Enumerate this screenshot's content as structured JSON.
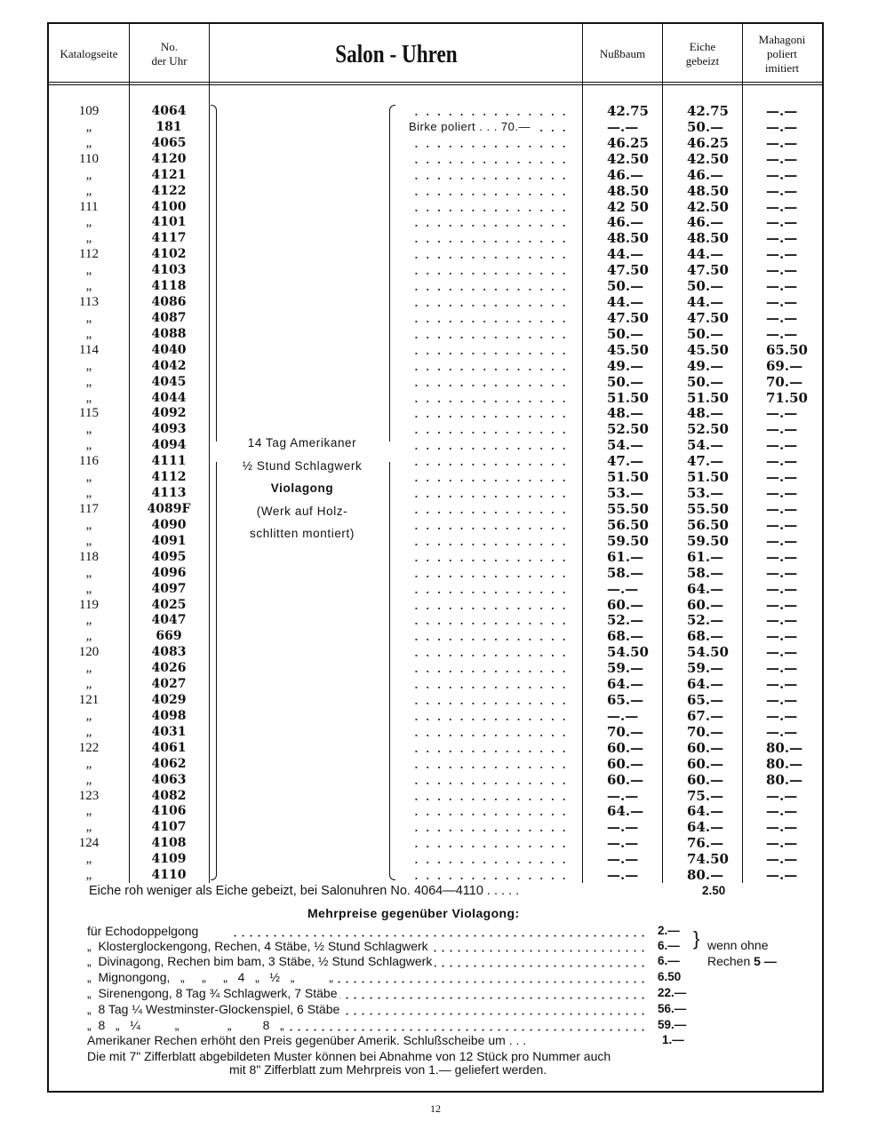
{
  "header": {
    "col_page": "Katalogseite",
    "col_no_1": "No.",
    "col_no_2": "der Uhr",
    "title": "Salon - Uhren",
    "col_nussbaum": "Nußbaum",
    "col_eiche_1": "Eiche",
    "col_eiche_2": "gebeizt",
    "col_mahagoni_1": "Mahagoni",
    "col_mahagoni_2": "poliert",
    "col_mahagoni_3": "imitiert"
  },
  "description": {
    "line1": "14 Tag Amerikaner",
    "line2": "½ Stund Schlagwerk",
    "line3": "Violagong",
    "line4": "(Werk auf Holz-",
    "line5": "schlitten montiert)"
  },
  "birke_note": "Birke poliert . . . 70.—",
  "rows": [
    [
      "109",
      "4064",
      "42.75",
      "42.75",
      "—.—"
    ],
    [
      "„",
      "181",
      "—.—",
      "50.—",
      "—.—"
    ],
    [
      "„",
      "4065",
      "46.25",
      "46.25",
      "—.—"
    ],
    [
      "110",
      "4120",
      "42.50",
      "42.50",
      "—.—"
    ],
    [
      "„",
      "4121",
      "46.—",
      "46.—",
      "—.—"
    ],
    [
      "„",
      "4122",
      "48.50",
      "48.50",
      "—.—"
    ],
    [
      "111",
      "4100",
      "42 50",
      "42.50",
      "—.—"
    ],
    [
      "„",
      "4101",
      "46.—",
      "46.—",
      "—.—"
    ],
    [
      "„",
      "4117",
      "48.50",
      "48.50",
      "—.—"
    ],
    [
      "112",
      "4102",
      "44.—",
      "44.—",
      "—.—"
    ],
    [
      "„",
      "4103",
      "47.50",
      "47.50",
      "—.—"
    ],
    [
      "„",
      "4118",
      "50.—",
      "50.—",
      "—.—"
    ],
    [
      "113",
      "4086",
      "44.—",
      "44.—",
      "—.—"
    ],
    [
      "„",
      "4087",
      "47.50",
      "47.50",
      "—.—"
    ],
    [
      "„",
      "4088",
      "50.—",
      "50.—",
      "—.—"
    ],
    [
      "114",
      "4040",
      "45.50",
      "45.50",
      "65.50"
    ],
    [
      "„",
      "4042",
      "49.—",
      "49.—",
      "69.—"
    ],
    [
      "„",
      "4045",
      "50.—",
      "50.—",
      "70.—"
    ],
    [
      "„",
      "4044",
      "51.50",
      "51.50",
      "71.50"
    ],
    [
      "115",
      "4092",
      "48.—",
      "48.—",
      "—.—"
    ],
    [
      "„",
      "4093",
      "52.50",
      "52.50",
      "—.—"
    ],
    [
      "„",
      "4094",
      "54.—",
      "54.—",
      "—.—"
    ],
    [
      "116",
      "4111",
      "47.—",
      "47.—",
      "—.—"
    ],
    [
      "„",
      "4112",
      "51.50",
      "51.50",
      "—.—"
    ],
    [
      "„",
      "4113",
      "53.—",
      "53.—",
      "—.—"
    ],
    [
      "117",
      "4089F",
      "55.50",
      "55.50",
      "—.—"
    ],
    [
      "„",
      "4090",
      "56.50",
      "56.50",
      "—.—"
    ],
    [
      "„",
      "4091",
      "59.50",
      "59.50",
      "—.—"
    ],
    [
      "118",
      "4095",
      "61.—",
      "61.—",
      "—.—"
    ],
    [
      "„",
      "4096",
      "58.—",
      "58.—",
      "—.—"
    ],
    [
      "„",
      "4097",
      "—.—",
      "64.—",
      "—.—"
    ],
    [
      "119",
      "4025",
      "60.—",
      "60.—",
      "—.—"
    ],
    [
      "„",
      "4047",
      "52.—",
      "52.—",
      "—.—"
    ],
    [
      "„",
      "669",
      "68.—",
      "68.—",
      "—.—"
    ],
    [
      "120",
      "4083",
      "54.50",
      "54.50",
      "—.—"
    ],
    [
      "„",
      "4026",
      "59.—",
      "59.—",
      "—.—"
    ],
    [
      "„",
      "4027",
      "64.—",
      "64.—",
      "—.—"
    ],
    [
      "121",
      "4029",
      "65.—",
      "65.—",
      "—.—"
    ],
    [
      "„",
      "4098",
      "—.—",
      "67.—",
      "—.—"
    ],
    [
      "„",
      "4031",
      "70.—",
      "70.—",
      "—.—"
    ],
    [
      "122",
      "4061",
      "60.—",
      "60.—",
      "80.—"
    ],
    [
      "„",
      "4062",
      "60.—",
      "60.—",
      "80.—"
    ],
    [
      "„",
      "4063",
      "60.—",
      "60.—",
      "80.—"
    ],
    [
      "123",
      "4082",
      "—.—",
      "75.—",
      "—.—"
    ],
    [
      "„",
      "4106",
      "64.—",
      "64.—",
      "—.—"
    ],
    [
      "„",
      "4107",
      "—.—",
      "64.—",
      "—.—"
    ],
    [
      "124",
      "4108",
      "—.—",
      "76.—",
      "—.—"
    ],
    [
      "„",
      "4109",
      "—.—",
      "74.50",
      "—.—"
    ],
    [
      "„",
      "4110",
      "—.—",
      "80.—",
      "—.—"
    ]
  ],
  "notes": {
    "eiche_roh": "Eiche roh weniger als Eiche gebeizt, bei Salonuhren No. 4064—4110 . . . . .",
    "eiche_roh_value": "2.50",
    "mehrpreise_heading": "Mehrpreise gegenüber Violagong:",
    "surcharges": [
      {
        "label": "für Echodoppelgong",
        "value": "2.—"
      },
      {
        "label": "„  Klosterglockengong, Rechen, 4 Stäbe, ½ Stund Schlagwerk",
        "value": "6.—"
      },
      {
        "label": "„  Divinagong, Rechen bim bam, 3 Stäbe, ½ Stund Schlagwerk",
        "value": "6.—"
      },
      {
        "label": "„  Mignongong,   „     „     „   4   „   ½   „          „",
        "value": "6.50"
      },
      {
        "label": "„  Sirenengong, 8 Tag ¾ Schlagwerk, 7 Stäbe",
        "value": "22.—"
      },
      {
        "label": "„  8 Tag ¼ Westminster-Glockenspiel, 6 Stäbe",
        "value": "56.—"
      },
      {
        "label": "„  8   „   ¼          „              „         8   „",
        "value": "59.—"
      }
    ],
    "wenn_ohne_1": "wenn ohne",
    "wenn_ohne_2": "Rechen",
    "wenn_ohne_value": "5 —",
    "amerikaner": "Amerikaner Rechen erhöht den Preis gegenüber Amerik. Schlußscheibe um . . .",
    "amerikaner_value": "1.—",
    "zifferblatt_1": "Die mit 7\" Zifferblatt abgebildeten Muster können bei Abnahme von 12 Stück pro Nummer auch",
    "zifferblatt_2": "mit 8\" Zifferblatt zum Mehrpreis von 1.— geliefert werden."
  },
  "page_number": "12"
}
